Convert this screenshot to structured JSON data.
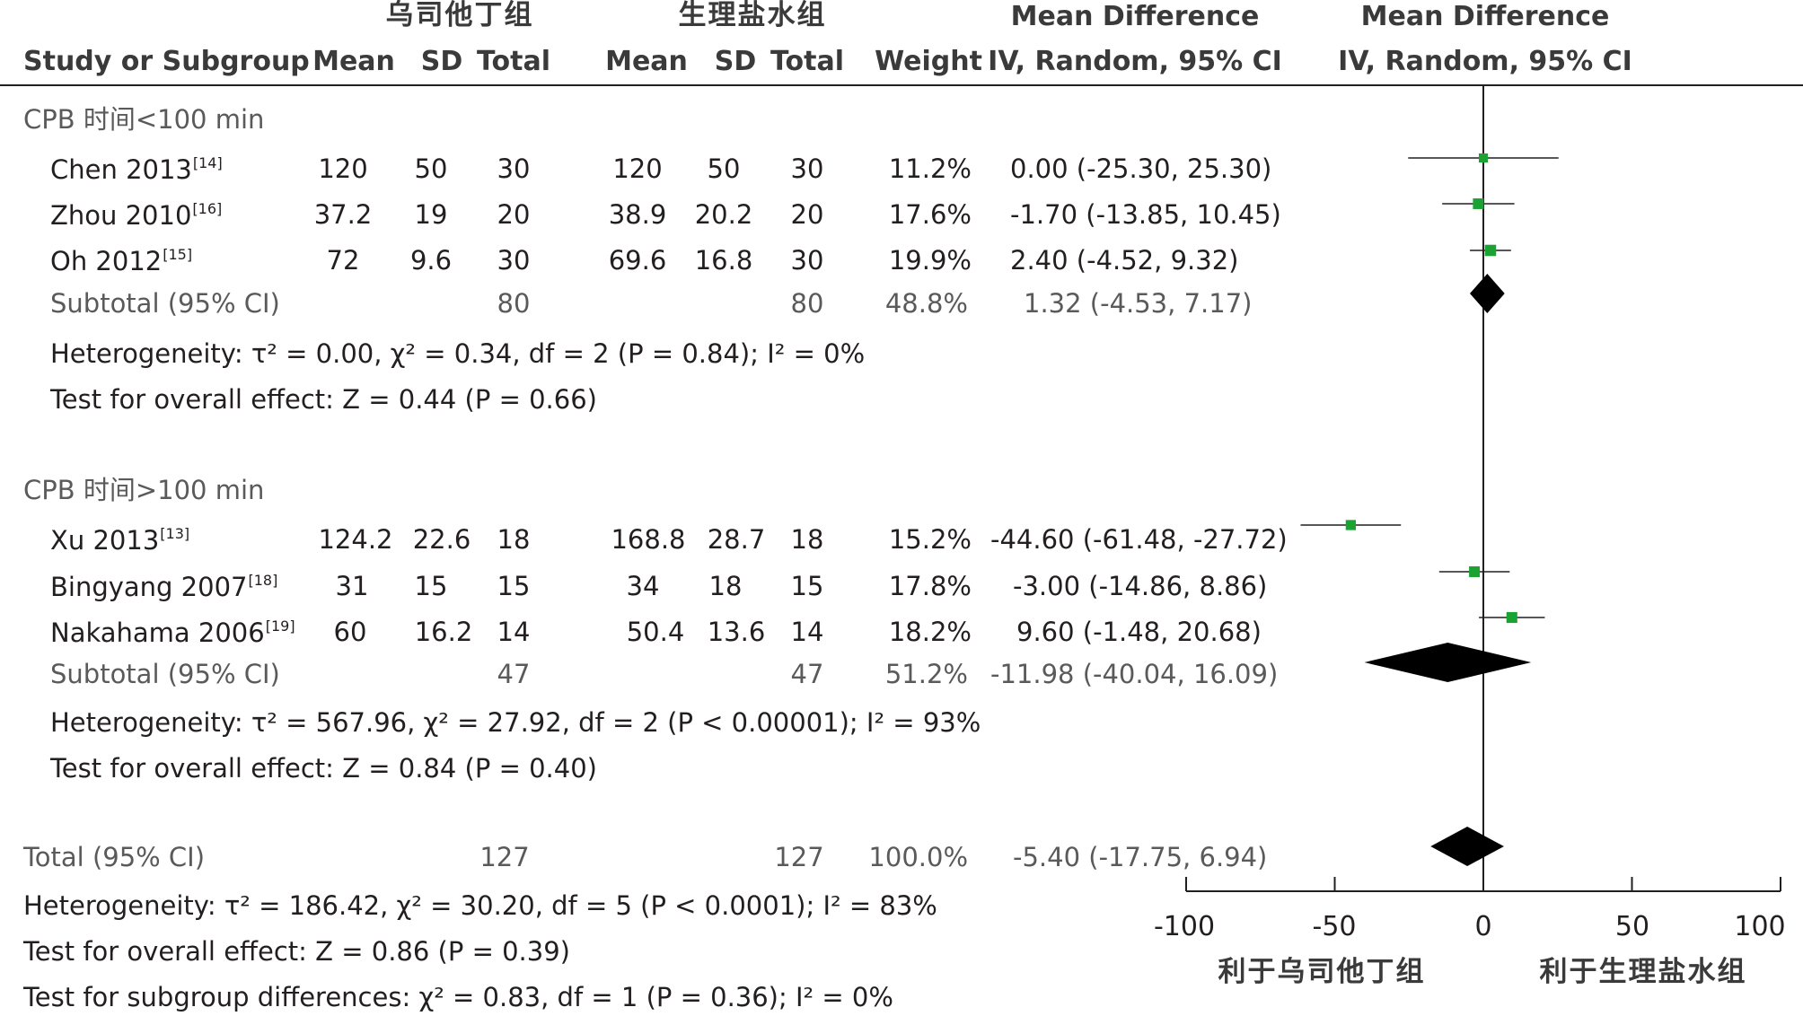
{
  "headers": {
    "group1": "乌司他丁组",
    "group2": "生理盐水组",
    "md_title": "Mean Difference",
    "md_method": "IV, Random, 95% CI",
    "study_col": "Study or Subgroup",
    "mean": "Mean",
    "sd": "SD",
    "total": "Total",
    "weight": "Weight"
  },
  "subgroups": [
    {
      "label": "CPB 时间<100 min",
      "studies": [
        {
          "name": "Chen 2013",
          "ref": "[14]",
          "m1": "120",
          "sd1": "50",
          "n1": "30",
          "m2": "120",
          "sd2": "50",
          "n2": "30",
          "weight": "11.2%",
          "ci": "0.00 (-25.30, 25.30)"
        },
        {
          "name": "Zhou 2010",
          "ref": "[16]",
          "m1": "37.2",
          "sd1": "19",
          "n1": "20",
          "m2": "38.9",
          "sd2": "20.2",
          "n2": "20",
          "weight": "17.6%",
          "ci": "-1.70 (-13.85, 10.45)"
        },
        {
          "name": "Oh 2012",
          "ref": "[15]",
          "m1": "72",
          "sd1": "9.6",
          "n1": "30",
          "m2": "69.6",
          "sd2": "16.8",
          "n2": "30",
          "weight": "19.9%",
          "ci": "2.40 (-4.52, 9.32)"
        }
      ],
      "subtotal": {
        "label": "Subtotal (95% CI)",
        "n1": "80",
        "n2": "80",
        "weight": "48.8%",
        "ci": "1.32 (-4.53, 7.17)"
      },
      "heterogeneity": "Heterogeneity: τ² = 0.00, χ² = 0.34, df = 2 (P = 0.84); I² = 0%",
      "overall": "Test for overall effect: Z = 0.44 (P = 0.66)"
    },
    {
      "label": "CPB 时间>100 min",
      "studies": [
        {
          "name": "Xu 2013",
          "ref": "[13]",
          "m1": "124.2",
          "sd1": "22.6",
          "n1": "18",
          "m2": "168.8",
          "sd2": "28.7",
          "n2": "18",
          "weight": "15.2%",
          "ci": "-44.60 (-61.48, -27.72)"
        },
        {
          "name": "Bingyang 2007",
          "ref": "[18]",
          "m1": "31",
          "sd1": "15",
          "n1": "15",
          "m2": "34",
          "sd2": "18",
          "n2": "15",
          "weight": "17.8%",
          "ci": "-3.00 (-14.86, 8.86)"
        },
        {
          "name": "Nakahama 2006",
          "ref": "[19]",
          "m1": "60",
          "sd1": "16.2",
          "n1": "14",
          "m2": "50.4",
          "sd2": "13.6",
          "n2": "14",
          "weight": "18.2%",
          "ci": "9.60 (-1.48, 20.68)"
        }
      ],
      "subtotal": {
        "label": "Subtotal (95% CI)",
        "n1": "47",
        "n2": "47",
        "weight": "51.2%",
        "ci": "-11.98 (-40.04, 16.09)"
      },
      "heterogeneity": "Heterogeneity: τ² = 567.96, χ² = 27.92, df = 2 (P < 0.00001); I² = 93%",
      "overall": "Test for overall effect: Z = 0.84 (P = 0.40)"
    }
  ],
  "total": {
    "label": "Total (95% CI)",
    "n1": "127",
    "n2": "127",
    "weight": "100.0%",
    "ci": "-5.40 (-17.75, 6.94)"
  },
  "total_heterogeneity": "Heterogeneity: τ² = 186.42, χ² = 30.20, df = 5 (P < 0.0001); I² = 83%",
  "total_overall": "Test for overall effect: Z = 0.86 (P = 0.39)",
  "subgroup_diff": "Test for subgroup differences: χ² = 0.83, df = 1 (P = 0.36); I² = 0%",
  "axis": {
    "ticks": [
      "-100",
      "-50",
      "0",
      "50",
      "100"
    ],
    "favours_left": "利于乌司他丁组",
    "favours_right": "利于生理盐水组"
  },
  "colors": {
    "study_marker": "#1aa332",
    "diamond": "#000000",
    "text": "#231f20"
  },
  "chart_data": {
    "type": "forest",
    "xlim": [
      -100,
      100
    ],
    "studies": [
      {
        "name": "Chen 2013",
        "md": 0.0,
        "lo": -25.3,
        "hi": 25.3,
        "weight": 11.2
      },
      {
        "name": "Zhou 2010",
        "md": -1.7,
        "lo": -13.85,
        "hi": 10.45,
        "weight": 17.6
      },
      {
        "name": "Oh 2012",
        "md": 2.4,
        "lo": -4.52,
        "hi": 9.32,
        "weight": 19.9
      },
      {
        "name": "Xu 2013",
        "md": -44.6,
        "lo": -61.48,
        "hi": -27.72,
        "weight": 15.2
      },
      {
        "name": "Bingyang 2007",
        "md": -3.0,
        "lo": -14.86,
        "hi": 8.86,
        "weight": 17.8
      },
      {
        "name": "Nakahama 2006",
        "md": 9.6,
        "lo": -1.48,
        "hi": 20.68,
        "weight": 18.2
      }
    ],
    "diamonds": [
      {
        "name": "Subtotal CPB 时间<100 min",
        "md": 1.32,
        "lo": -4.53,
        "hi": 7.17
      },
      {
        "name": "Subtotal CPB 时间>100 min",
        "md": -11.98,
        "lo": -40.04,
        "hi": 16.09
      },
      {
        "name": "Total",
        "md": -5.4,
        "lo": -17.75,
        "hi": 6.94
      }
    ]
  }
}
